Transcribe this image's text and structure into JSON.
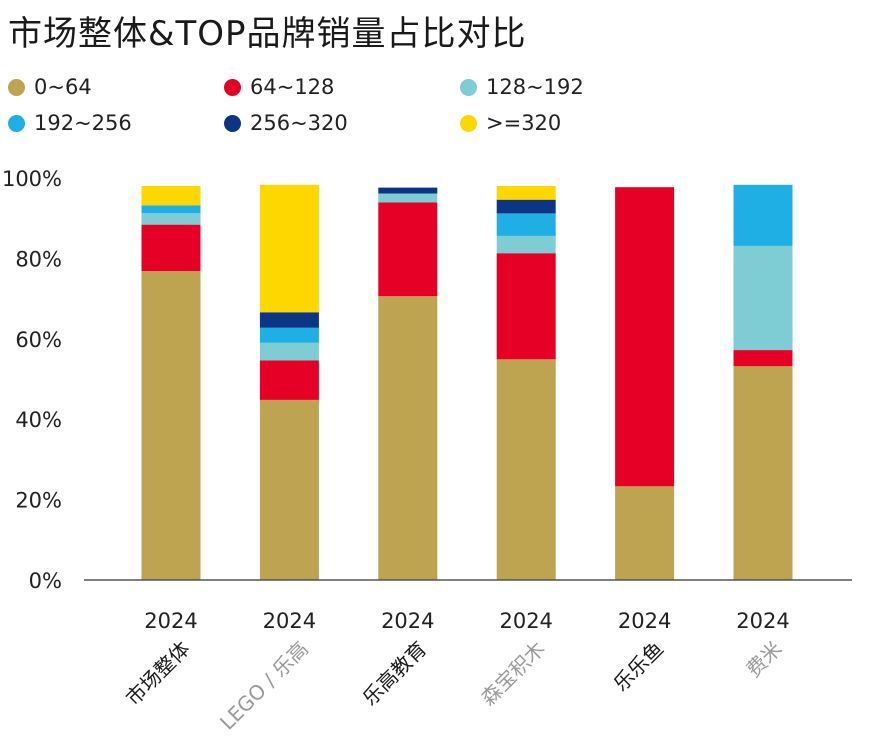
{
  "title": "市场整体&TOP品牌销量占比对比",
  "colors": {
    "0~64": "#BEA350",
    "64~128": "#E60026",
    "128~192": "#7ECDD4",
    "192~256": "#1FAFE5",
    "256~320": "#0D3585",
    ">=320": "#FFD700",
    "axis": "#555555",
    "label_dark": "#1a1a1a",
    "label_gray": "#9a9a9a"
  },
  "chart_data": {
    "type": "bar",
    "stacked": true,
    "title": "市场整体&TOP品牌销量占比对比",
    "xlabel": "",
    "ylabel": "",
    "ylim": [
      0,
      100
    ],
    "yticks": [
      "0%",
      "20%",
      "40%",
      "60%",
      "80%",
      "100%"
    ],
    "ytick_values": [
      0,
      20,
      40,
      60,
      80,
      100
    ],
    "legend_position": "top-left",
    "categories": [
      "2024",
      "2024",
      "2024",
      "2024",
      "2024",
      "2024"
    ],
    "category_names": [
      "市场整体",
      "LEGO / 乐高",
      "乐高教育",
      "森宝积木",
      "乐乐鱼",
      "费米"
    ],
    "category_name_gray": [
      false,
      true,
      false,
      true,
      false,
      true
    ],
    "series": [
      {
        "name": "0~64",
        "values": [
          76.8,
          44.8,
          70.6,
          54.9,
          23.3,
          53.2
        ]
      },
      {
        "name": "64~128",
        "values": [
          11.6,
          9.8,
          23.3,
          26.4,
          74.4,
          4.0
        ]
      },
      {
        "name": "128~192",
        "values": [
          2.8,
          4.4,
          2.2,
          4.3,
          0.0,
          25.9
        ]
      },
      {
        "name": "192~256",
        "values": [
          2.0,
          3.8,
          0.0,
          5.6,
          0.0,
          15.2
        ]
      },
      {
        "name": "256~320",
        "values": [
          0.0,
          3.8,
          1.5,
          3.4,
          0.0,
          0.0
        ]
      },
      {
        "name": ">=320",
        "values": [
          4.8,
          31.7,
          0.0,
          3.4,
          0.0,
          0.0
        ]
      }
    ]
  }
}
